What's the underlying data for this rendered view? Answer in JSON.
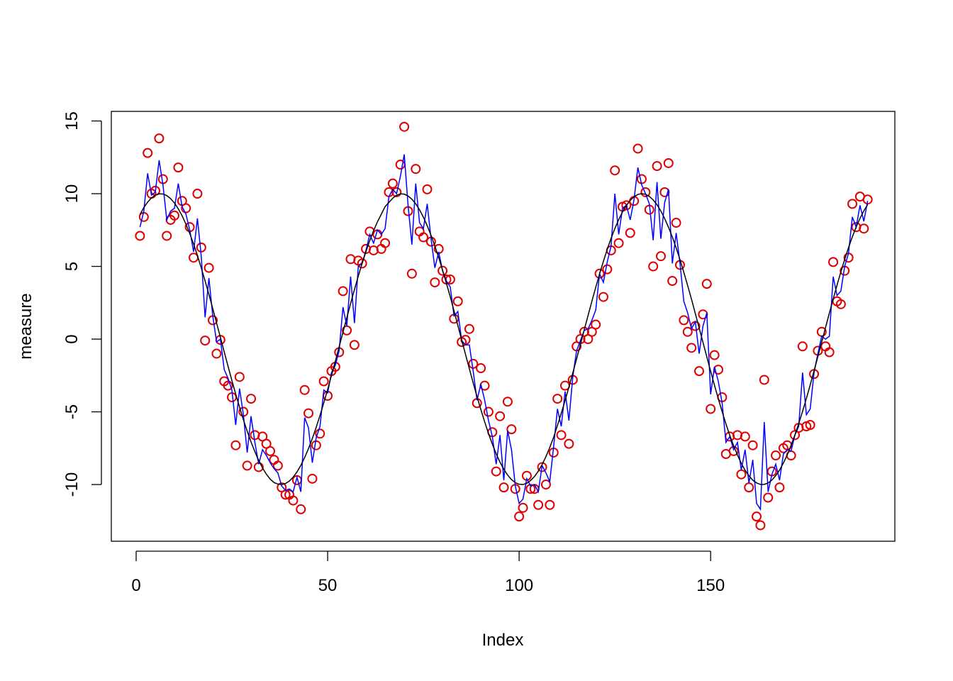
{
  "chart_data": {
    "type": "scatter",
    "xlabel": "Index",
    "ylabel": "measure",
    "xlim": [
      -6.48,
      198.1
    ],
    "ylim": [
      -13.9,
      15.66
    ],
    "xticks": [
      0,
      50,
      100,
      150
    ],
    "yticks": [
      -10,
      -5,
      0,
      5,
      10,
      15
    ],
    "grid": false,
    "x": [
      1,
      2,
      3,
      4,
      5,
      6,
      7,
      8,
      9,
      10,
      11,
      12,
      13,
      14,
      15,
      16,
      17,
      18,
      19,
      20,
      21,
      22,
      23,
      24,
      25,
      26,
      27,
      28,
      29,
      30,
      31,
      32,
      33,
      34,
      35,
      36,
      37,
      38,
      39,
      40,
      41,
      42,
      43,
      44,
      45,
      46,
      47,
      48,
      49,
      50,
      51,
      52,
      53,
      54,
      55,
      56,
      57,
      58,
      59,
      60,
      61,
      62,
      63,
      64,
      65,
      66,
      67,
      68,
      69,
      70,
      71,
      72,
      73,
      74,
      75,
      76,
      77,
      78,
      79,
      80,
      81,
      82,
      83,
      84,
      85,
      86,
      87,
      88,
      89,
      90,
      91,
      92,
      93,
      94,
      95,
      96,
      97,
      98,
      99,
      100,
      101,
      102,
      103,
      104,
      105,
      106,
      107,
      108,
      109,
      110,
      111,
      112,
      113,
      114,
      115,
      116,
      117,
      118,
      119,
      120,
      121,
      122,
      123,
      124,
      125,
      126,
      127,
      128,
      129,
      130,
      131,
      132,
      133,
      134,
      135,
      136,
      137,
      138,
      139,
      140,
      141,
      142,
      143,
      144,
      145,
      146,
      147,
      148,
      149,
      150,
      151,
      152,
      153,
      154,
      155,
      156,
      157,
      158,
      159,
      160,
      161,
      162,
      163,
      164,
      165,
      166,
      167,
      168,
      169,
      170,
      171,
      172,
      173,
      174,
      175,
      176,
      177,
      178,
      179,
      180,
      181,
      182,
      183,
      184,
      185,
      186,
      187,
      188,
      189,
      190,
      191
    ],
    "series": [
      {
        "type": "scatter",
        "color": "#e00000",
        "values": [
          7.1,
          8.4,
          12.8,
          10.0,
          10.2,
          13.8,
          11.0,
          7.1,
          8.2,
          8.5,
          11.8,
          9.5,
          9.0,
          7.7,
          5.6,
          10.0,
          6.3,
          -0.1,
          4.9,
          1.3,
          -1.0,
          -0.05,
          -2.9,
          -3.2,
          -4.0,
          -7.3,
          -2.6,
          -5.0,
          -8.7,
          -4.1,
          -6.6,
          -8.8,
          -6.7,
          -7.2,
          -7.7,
          -8.3,
          -8.7,
          -10.2,
          -10.7,
          -10.7,
          -11.1,
          -9.7,
          -11.7,
          -3.5,
          -5.1,
          -9.6,
          -7.3,
          -6.5,
          -2.9,
          -3.9,
          -2.2,
          -1.9,
          -0.9,
          3.3,
          0.6,
          5.5,
          -0.4,
          5.4,
          5.2,
          6.2,
          7.4,
          6.1,
          7.2,
          6.2,
          6.6,
          10.1,
          10.7,
          10.1,
          12.0,
          14.6,
          8.8,
          4.5,
          11.7,
          7.4,
          7.0,
          10.3,
          6.7,
          3.9,
          6.2,
          4.7,
          4.1,
          4.1,
          1.4,
          2.6,
          -0.2,
          -0.05,
          0.7,
          -1.7,
          -4.4,
          -2.0,
          -3.2,
          -5.0,
          -6.4,
          -9.1,
          -5.3,
          -10.2,
          -4.3,
          -6.2,
          -10.3,
          -12.2,
          -11.6,
          -9.4,
          -10.3,
          -10.3,
          -11.4,
          -8.8,
          -10.0,
          -11.4,
          -7.8,
          -4.1,
          -6.6,
          -3.2,
          -7.2,
          -2.8,
          -0.5,
          0.0,
          0.5,
          0.0,
          0.5,
          1.0,
          4.5,
          2.9,
          4.8,
          6.1,
          11.6,
          6.6,
          9.1,
          9.2,
          7.3,
          9.5,
          13.1,
          11.0,
          10.1,
          8.9,
          5.0,
          11.9,
          5.7,
          10.1,
          12.1,
          4.0,
          8.0,
          5.1,
          1.3,
          0.5,
          -0.6,
          0.9,
          -2.2,
          1.7,
          3.8,
          -4.8,
          -1.1,
          -2.1,
          -4.0,
          -7.9,
          -6.7,
          -7.7,
          -6.6,
          -9.3,
          -6.7,
          -10.2,
          -7.3,
          -12.2,
          -12.8,
          -2.8,
          -10.9,
          -9.1,
          -8.0,
          -10.2,
          -7.5,
          -7.3,
          -8.0,
          -6.6,
          -6.1,
          -0.5,
          -6.0,
          -5.9,
          -2.4,
          -0.8,
          0.5,
          -0.5,
          -0.9,
          5.3,
          2.6,
          2.4,
          4.7,
          5.6,
          9.3,
          7.7,
          9.8,
          7.6,
          9.6
        ]
      },
      {
        "type": "line",
        "color": "#0000ff",
        "values": [
          7.7,
          8.8,
          11.4,
          9.9,
          10.1,
          12.3,
          10.6,
          8.2,
          8.8,
          9.0,
          10.7,
          9.1,
          8.6,
          7.5,
          6.0,
          8.3,
          5.7,
          1.5,
          4.2,
          1.6,
          -0.2,
          0.0,
          -2.1,
          -2.7,
          -3.5,
          -5.9,
          -3.4,
          -5.2,
          -7.8,
          -5.3,
          -7.1,
          -8.6,
          -7.6,
          -8.0,
          -8.5,
          -8.9,
          -9.2,
          -10.1,
          -10.4,
          -10.3,
          -10.5,
          -9.5,
          -10.5,
          -5.4,
          -6.1,
          -8.5,
          -6.8,
          -6.0,
          -3.5,
          -3.7,
          -2.3,
          -1.8,
          -0.8,
          2.2,
          0.9,
          4.3,
          1.1,
          5.0,
          5.2,
          6.1,
          7.2,
          6.6,
          7.5,
          7.2,
          7.6,
          9.8,
          10.3,
          10.0,
          11.2,
          12.7,
          9.2,
          6.5,
          10.7,
          8.0,
          7.6,
          9.3,
          6.9,
          4.9,
          6.0,
          4.7,
          4.0,
          3.6,
          1.6,
          1.9,
          -0.1,
          -0.4,
          -0.4,
          -2.2,
          -4.2,
          -3.1,
          -4.2,
          -5.6,
          -6.7,
          -8.6,
          -6.6,
          -9.7,
          -6.3,
          -7.6,
          -10.1,
          -11.3,
          -11.0,
          -9.6,
          -10.1,
          -10.0,
          -10.5,
          -8.7,
          -9.2,
          -9.8,
          -7.4,
          -4.8,
          -6.0,
          -3.6,
          -5.6,
          -2.6,
          -0.8,
          -0.1,
          0.6,
          0.7,
          1.3,
          2.0,
          4.5,
          3.9,
          5.3,
          6.4,
          10.0,
          7.2,
          9.0,
          9.2,
          8.2,
          9.6,
          11.8,
          10.6,
          10.0,
          9.3,
          6.8,
          10.8,
          6.9,
          9.4,
          10.3,
          5.2,
          7.3,
          5.2,
          2.6,
          1.8,
          0.7,
          1.2,
          -1.0,
          0.9,
          1.8,
          -3.8,
          -1.9,
          -2.9,
          -4.4,
          -7.1,
          -6.7,
          -7.6,
          -7.1,
          -9.0,
          -7.6,
          -9.9,
          -8.3,
          -11.3,
          -11.7,
          -5.7,
          -10.5,
          -9.3,
          -8.6,
          -9.7,
          -7.9,
          -7.6,
          -7.7,
          -6.6,
          -6.0,
          -2.3,
          -5.2,
          -4.8,
          -2.3,
          -1.0,
          0.2,
          0.0,
          0.2,
          4.3,
          3.0,
          3.3,
          5.0,
          5.9,
          8.4,
          7.7,
          9.2,
          8.1,
          9.5
        ]
      },
      {
        "type": "line",
        "color": "#000000",
        "values": [
          8.57,
          9.04,
          9.42,
          9.71,
          9.9,
          9.99,
          9.98,
          9.87,
          9.66,
          9.36,
          8.96,
          8.48,
          7.91,
          7.26,
          6.54,
          5.75,
          4.9,
          4.0,
          3.07,
          2.1,
          1.11,
          0.12,
          -0.88,
          -1.87,
          -2.84,
          -3.78,
          -4.68,
          -5.54,
          -6.33,
          -7.07,
          -7.74,
          -8.34,
          -8.86,
          -9.29,
          -9.63,
          -9.86,
          -9.97,
          -10.0,
          -9.93,
          -9.76,
          -9.49,
          -9.13,
          -8.68,
          -8.14,
          -7.53,
          -6.84,
          -6.08,
          -5.25,
          -4.38,
          -3.46,
          -2.5,
          -1.53,
          -0.53,
          0.47,
          1.46,
          2.45,
          3.41,
          4.33,
          5.2,
          6.02,
          6.78,
          7.46,
          8.06,
          8.58,
          9.11,
          9.4,
          9.69,
          9.89,
          9.99,
          9.97,
          9.84,
          9.62,
          9.3,
          8.89,
          8.38,
          7.79,
          7.13,
          6.4,
          5.61,
          4.75,
          3.85,
          2.92,
          1.94,
          0.94,
          -0.06,
          -1.05,
          -2.04,
          -3.01,
          -3.95,
          -4.84,
          -5.69,
          -6.49,
          -7.22,
          -7.88,
          -8.46,
          -8.95,
          -9.35,
          -9.66,
          -9.87,
          -9.98,
          -10.0,
          -9.91,
          -9.72,
          -9.45,
          -9.08,
          -8.63,
          -8.08,
          -7.45,
          -6.75,
          -5.94,
          -5.1,
          -4.22,
          -3.3,
          -2.34,
          -1.36,
          -0.36,
          0.64,
          1.63,
          2.61,
          3.56,
          4.48,
          5.35,
          6.17,
          6.92,
          7.61,
          8.22,
          8.75,
          9.19,
          9.54,
          9.79,
          9.95,
          10.0,
          9.96,
          9.81,
          9.57,
          9.24,
          8.81,
          8.29,
          7.69,
          7.02,
          6.27,
          5.46,
          4.59,
          3.68,
          2.75,
          1.76,
          0.77,
          -0.22,
          -1.22,
          -2.21,
          -3.17,
          -4.1,
          -4.99,
          -5.83,
          -6.62,
          -7.33,
          -7.97,
          -8.54,
          -9.02,
          -9.4,
          -9.7,
          -9.89,
          -9.99,
          -9.99,
          -9.89,
          -9.69,
          -9.39,
          -9.0,
          -8.52,
          -7.96,
          -7.31,
          -6.59,
          -5.81,
          -4.97,
          -4.08,
          -3.15,
          -2.18,
          -1.2,
          -0.2,
          0.8,
          1.79,
          2.76,
          3.71,
          4.62,
          5.48,
          6.29,
          7.03,
          7.71,
          8.3,
          8.82,
          9.25
        ]
      }
    ]
  }
}
